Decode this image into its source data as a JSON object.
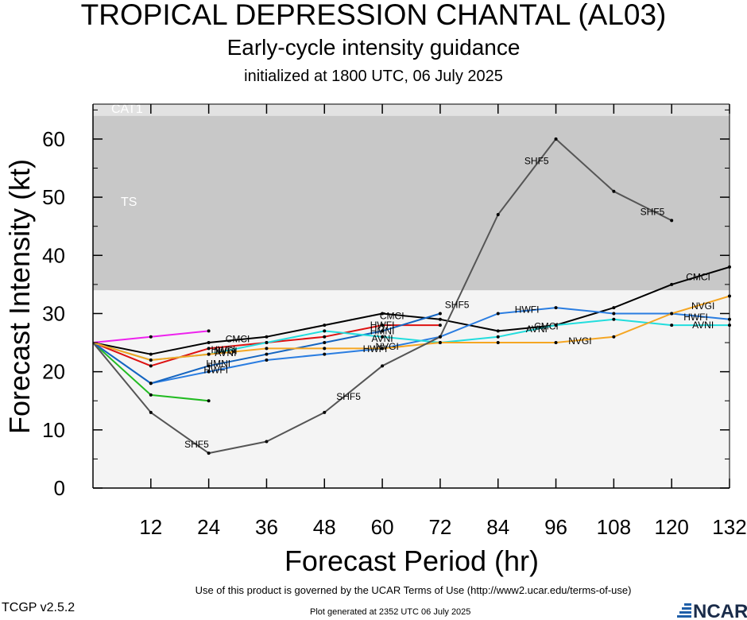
{
  "header": {
    "title": "TROPICAL DEPRESSION CHANTAL (AL03)",
    "subtitle": "Early-cycle intensity guidance",
    "initialized": "initialized at 1800 UTC, 06 July 2025"
  },
  "footer": {
    "terms": "Use of this product is governed by the UCAR Terms of Use (http://www2.ucar.edu/terms-of-use)",
    "version": "TCGP v2.5.2",
    "generated": "Plot generated at 2352 UTC   06 July 2025",
    "logo_text": "NCAR"
  },
  "chart_data": {
    "type": "line",
    "xlabel": "Forecast Period (hr)",
    "ylabel": "Forecast Intensity (kt)",
    "xlim": [
      0,
      132
    ],
    "ylim": [
      0,
      66
    ],
    "xticks": [
      12,
      24,
      36,
      48,
      60,
      72,
      84,
      96,
      108,
      120,
      132
    ],
    "yticks": [
      0,
      10,
      20,
      30,
      40,
      50,
      60
    ],
    "bands": [
      {
        "label": "TS",
        "from": 34,
        "to": 64,
        "color": "#c8c8c8"
      },
      {
        "label": "CAT1",
        "from": 64,
        "to": 66,
        "color": "#e2e2e2"
      }
    ],
    "below_band_color": "#f4f4f4",
    "series": [
      {
        "color": "#ee22ee",
        "x": [
          0,
          12,
          24
        ],
        "y": [
          25,
          26,
          27
        ]
      },
      {
        "color": "#22bb22",
        "x": [
          0,
          12,
          24
        ],
        "y": [
          25,
          16,
          15
        ]
      },
      {
        "color": "#dd1111",
        "x": [
          0,
          12,
          24,
          36,
          48,
          60,
          72
        ],
        "y": [
          25,
          21,
          24,
          25,
          26,
          28,
          28
        ]
      },
      {
        "name": "CMCI",
        "color": "#000000",
        "x": [
          0,
          12,
          24,
          36,
          48,
          60,
          72,
          84,
          96,
          108,
          120,
          132
        ],
        "y": [
          25,
          23,
          25,
          26,
          28,
          30,
          29,
          27,
          28,
          31,
          35,
          38
        ]
      },
      {
        "name": "HWFI",
        "color": "#2a7de1",
        "x": [
          0,
          12,
          24,
          36,
          48,
          60,
          72,
          84,
          96,
          108,
          120,
          132
        ],
        "y": [
          25,
          18,
          20,
          22,
          23,
          24,
          26,
          30,
          31,
          30,
          30,
          29
        ]
      },
      {
        "name": "HMNI",
        "color": "#1565c0",
        "x": [
          0,
          12,
          24,
          36,
          48,
          60,
          72
        ],
        "y": [
          25,
          18,
          21,
          23,
          25,
          27,
          30
        ]
      },
      {
        "name": "AVNI",
        "color": "#22dddd",
        "x": [
          0,
          12,
          24,
          36,
          48,
          60,
          72,
          84,
          96,
          108,
          120,
          132
        ],
        "y": [
          25,
          22,
          23,
          25,
          27,
          26,
          25,
          26,
          28,
          29,
          28,
          28
        ]
      },
      {
        "name": "NVGI",
        "color": "#f5a623",
        "x": [
          0,
          12,
          24,
          36,
          48,
          60,
          72,
          84,
          96,
          108,
          120,
          132
        ],
        "y": [
          25,
          22,
          23,
          24,
          24,
          24,
          25,
          25,
          25,
          26,
          30,
          33
        ]
      },
      {
        "name": "SHF5",
        "color": "#555555",
        "x": [
          0,
          12,
          24,
          36,
          48,
          60,
          72,
          84,
          96,
          108,
          120
        ],
        "y": [
          25,
          13,
          6,
          8,
          13,
          21,
          26,
          47,
          60,
          51,
          46
        ]
      }
    ],
    "labels": [
      {
        "text": "CMCI",
        "x": 30,
        "y": 25.6,
        "color": "#000000"
      },
      {
        "text": "CMCI",
        "x": 62,
        "y": 29.6,
        "color": "#000000"
      },
      {
        "text": "CMCI",
        "x": 125.5,
        "y": 36.3,
        "color": "#000000"
      },
      {
        "text": "CMCI",
        "x": 94,
        "y": 27.8,
        "color": "#000000"
      },
      {
        "text": "HWFI",
        "x": 25.5,
        "y": 20.3,
        "color": "#000000"
      },
      {
        "text": "HWFI",
        "x": 58.5,
        "y": 23.9,
        "color": "#000000"
      },
      {
        "text": "HWFI",
        "x": 90,
        "y": 30.7,
        "color": "#000000"
      },
      {
        "text": "HWFI",
        "x": 125,
        "y": 29.4,
        "color": "#000000"
      },
      {
        "text": "HMNI",
        "x": 26,
        "y": 21.4,
        "color": "#000000"
      },
      {
        "text": "HMNI",
        "x": 60,
        "y": 27,
        "color": "#000000"
      },
      {
        "text": "HWFI",
        "x": 27,
        "y": 23.8,
        "color": "#000000"
      },
      {
        "text": "HWFI",
        "x": 60,
        "y": 28,
        "color": "#000000"
      },
      {
        "text": "AVNI",
        "x": 27.5,
        "y": 23.2,
        "color": "#000000"
      },
      {
        "text": "AVNI",
        "x": 60,
        "y": 25.7,
        "color": "#000000"
      },
      {
        "text": "AVNI",
        "x": 92,
        "y": 27.3,
        "color": "#000000"
      },
      {
        "text": "AVNI",
        "x": 126.5,
        "y": 28,
        "color": "#000000"
      },
      {
        "text": "NVGI",
        "x": 27.5,
        "y": 23.6,
        "color": "#000000"
      },
      {
        "text": "NVGI",
        "x": 61,
        "y": 24.3,
        "color": "#000000"
      },
      {
        "text": "NVGI",
        "x": 101,
        "y": 25.3,
        "color": "#000000"
      },
      {
        "text": "NVGI",
        "x": 126.5,
        "y": 31.3,
        "color": "#000000"
      },
      {
        "text": "SHF5",
        "x": 21.5,
        "y": 7.5,
        "color": "#000000"
      },
      {
        "text": "SHF5",
        "x": 53,
        "y": 15.7,
        "color": "#000000"
      },
      {
        "text": "SHF5",
        "x": 75.5,
        "y": 31.5,
        "color": "#000000"
      },
      {
        "text": "SHF5",
        "x": 92,
        "y": 56.2,
        "color": "#000000"
      },
      {
        "text": "SHF5",
        "x": 116,
        "y": 47.5,
        "color": "#000000"
      }
    ]
  }
}
